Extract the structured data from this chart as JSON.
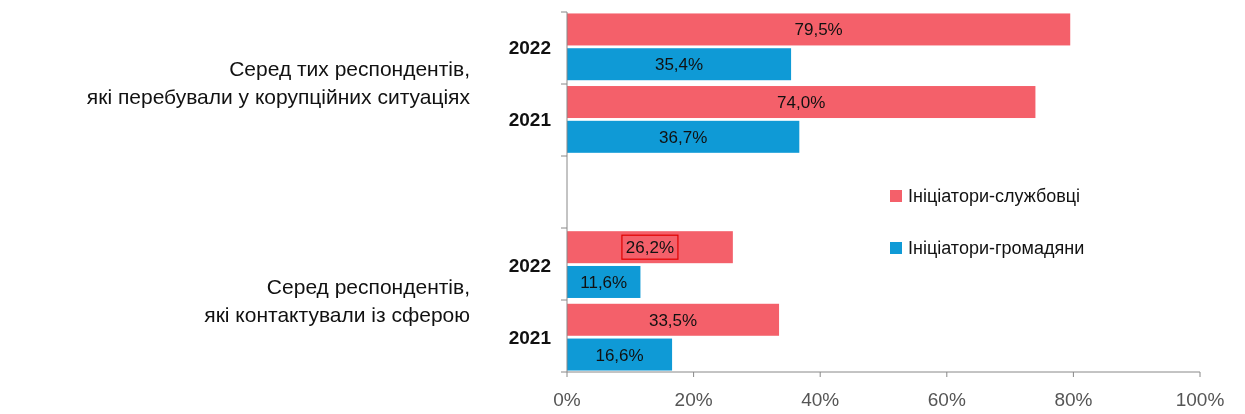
{
  "chart_data": {
    "type": "bar",
    "orientation": "horizontal",
    "categories": [
      "2022",
      "2021",
      null,
      "2022",
      "2021"
    ],
    "series": [
      {
        "name": "Ініціатори-службовці",
        "color": "#f4606a",
        "values": [
          79.5,
          74.0,
          null,
          26.2,
          33.5
        ],
        "value_labels": [
          "79,5%",
          "74,0%",
          null,
          "26,2%",
          "33,5%"
        ]
      },
      {
        "name": "Ініціатори-громадяни",
        "color": "#0f9ad6",
        "values": [
          35.4,
          36.7,
          null,
          11.6,
          16.6
        ],
        "value_labels": [
          "35,4%",
          "36,7%",
          null,
          "11,6%",
          "16,6%"
        ]
      }
    ],
    "xlim": [
      0,
      100
    ],
    "xticks": [
      {
        "value": 0,
        "label": "0%"
      },
      {
        "value": 20,
        "label": "20%"
      },
      {
        "value": 40,
        "label": "40%"
      },
      {
        "value": 60,
        "label": "60%"
      },
      {
        "value": 80,
        "label": "80%"
      },
      {
        "value": 100,
        "label": "100%"
      }
    ],
    "annotations": [
      "Серед тих респондентів,\nякі перебували у корупційних ситуаціях",
      "Серед респондентів,\nякі контактували із сферою"
    ],
    "grid": false,
    "legend": "right"
  }
}
